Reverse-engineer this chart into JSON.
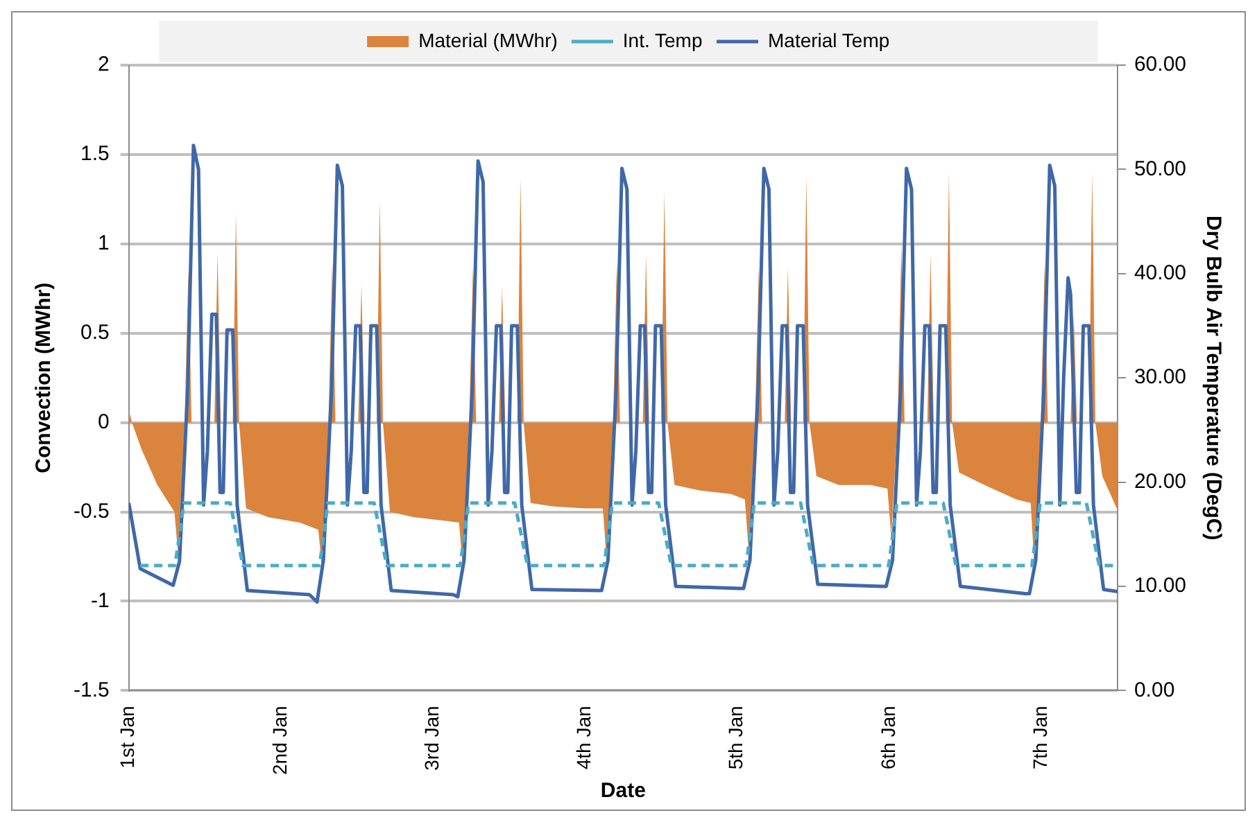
{
  "chart_data": {
    "type": "area",
    "xlabel": "Date",
    "ylabel": "Convection (MWhr)",
    "y2label": "Dry Bulb Air Temperature (DegC)",
    "legend": "top",
    "grid": "y",
    "xlim": [
      "--01-01T00:00",
      "--01-07T12:00"
    ],
    "xticks": [
      {
        "value": "--01-01",
        "label": "1st Jan"
      },
      {
        "value": "--01-02",
        "label": "2nd Jan"
      },
      {
        "value": "--01-03",
        "label": "3rd Jan"
      },
      {
        "value": "--01-04",
        "label": "4th Jan"
      },
      {
        "value": "--01-05",
        "label": "5th Jan"
      },
      {
        "value": "--01-06",
        "label": "6th Jan"
      },
      {
        "value": "--01-07",
        "label": "7th Jan"
      }
    ],
    "ylim": [
      -1.5,
      2
    ],
    "yticks": [
      -1.5,
      -1,
      -0.5,
      0,
      0.5,
      1,
      1.5,
      2
    ],
    "y2lim": [
      0,
      60
    ],
    "y2ticks": [
      {
        "value": 0,
        "label": "0.00"
      },
      {
        "value": 10,
        "label": "10.00"
      },
      {
        "value": 20,
        "label": "20.00"
      },
      {
        "value": 30,
        "label": "30.00"
      },
      {
        "value": 40,
        "label": "40.00"
      },
      {
        "value": 50,
        "label": "50.00"
      },
      {
        "value": 60,
        "label": "60.00"
      }
    ],
    "series": [
      {
        "name": "Material (MWhr)",
        "color": "#db843d",
        "x": [
          "--01-01T00:00",
          "--01-01T00:30",
          "--01-01T02:00",
          "--01-01T04:30",
          "--01-01T06:18",
          "--01-01T07:12",
          "--01-01T07:48",
          "--01-01T08:48",
          "--01-01T09:24",
          "--01-01T09:54",
          "--01-01T13:30",
          "--01-01T14:00",
          "--01-01T14:30",
          "--01-01T16:24",
          "--01-01T16:54",
          "--01-01T17:24",
          "--01-01T18:30",
          "--01-01T22:00",
          "--01-02T03:00",
          "--01-02T05:54",
          "--01-02T06:30",
          "--01-02T07:30",
          "--01-02T08:06",
          "--01-02T08:36",
          "--01-02T12:12",
          "--01-02T12:42",
          "--01-02T13:12",
          "--01-02T15:06",
          "--01-02T15:36",
          "--01-02T16:06",
          "--01-02T17:12",
          "--01-02T21:00",
          "--01-03T02:00",
          "--01-03T04:06",
          "--01-03T04:42",
          "--01-03T05:42",
          "--01-03T06:18",
          "--01-03T06:48",
          "--01-03T10:24",
          "--01-03T10:54",
          "--01-03T11:24",
          "--01-03T13:18",
          "--01-03T13:48",
          "--01-03T14:18",
          "--01-03T15:24",
          "--01-03T19:00",
          "--01-04T00:00",
          "--01-04T02:48",
          "--01-04T03:24",
          "--01-04T04:24",
          "--01-04T05:00",
          "--01-04T05:30",
          "--01-04T09:06",
          "--01-04T09:36",
          "--01-04T10:06",
          "--01-04T12:00",
          "--01-04T12:30",
          "--01-04T13:00",
          "--01-04T14:06",
          "--01-04T18:00",
          "--01-04T23:00",
          "--01-05T01:12",
          "--01-05T01:48",
          "--01-05T02:48",
          "--01-05T03:24",
          "--01-05T03:54",
          "--01-05T07:30",
          "--01-05T08:00",
          "--01-05T08:30",
          "--01-05T10:24",
          "--01-05T10:54",
          "--01-05T11:24",
          "--01-05T12:30",
          "--01-05T16:00",
          "--01-05T21:00",
          "--01-05T23:42",
          "--01-06T00:18",
          "--01-06T01:18",
          "--01-06T01:54",
          "--01-06T02:24",
          "--01-06T06:00",
          "--01-06T06:30",
          "--01-06T07:00",
          "--01-06T08:54",
          "--01-06T09:24",
          "--01-06T09:54",
          "--01-06T11:00",
          "--01-06T15:00",
          "--01-06T20:00",
          "--01-06T22:18",
          "--01-06T22:54",
          "--01-06T23:54",
          "--01-07T00:30",
          "--01-07T01:00",
          "--01-07T04:36",
          "--01-07T05:06",
          "--01-07T05:36",
          "--01-07T07:30",
          "--01-07T08:00",
          "--01-07T08:30",
          "--01-07T09:36",
          "--01-07T12:00"
        ],
        "values": [
          0.07,
          0,
          -0.15,
          -0.35,
          -0.45,
          -0.5,
          -0.75,
          0,
          0.85,
          0,
          0,
          0.95,
          0,
          0,
          1.17,
          0,
          -0.48,
          -0.53,
          -0.56,
          -0.6,
          -0.82,
          0,
          0.9,
          0,
          0,
          0.77,
          0,
          0,
          1.24,
          0,
          -0.5,
          -0.53,
          -0.55,
          -0.56,
          -0.82,
          0,
          0.87,
          0,
          0,
          0.76,
          0,
          0,
          1.37,
          0,
          -0.45,
          -0.47,
          -0.48,
          -0.48,
          -0.78,
          0,
          0.9,
          0,
          0,
          0.94,
          0,
          0,
          1.29,
          0,
          -0.35,
          -0.38,
          -0.4,
          -0.43,
          -0.72,
          0,
          0.87,
          0,
          0,
          0.87,
          0,
          0,
          1.38,
          0,
          -0.3,
          -0.35,
          -0.35,
          -0.37,
          -0.64,
          0,
          1,
          0,
          0,
          0.94,
          0,
          0,
          1.4,
          0,
          -0.28,
          -0.35,
          -0.43,
          -0.45,
          -0.82,
          0,
          0.9,
          0,
          0,
          0.6,
          0,
          0,
          1.4,
          0,
          -0.3,
          -0.49
        ]
      },
      {
        "name": "Int. Temp",
        "type": "line",
        "axis": "y2",
        "line_style": "dashed",
        "color": "#4bacc6",
        "x": [
          "--01-01T01:48",
          "--01-01T07:18",
          "--01-01T08:42",
          "--01-01T16:00",
          "--01-01T18:00",
          "--01-02T06:06",
          "--01-02T07:24",
          "--01-02T14:42",
          "--01-02T16:42",
          "--01-03T04:18",
          "--01-03T05:36",
          "--01-03T12:54",
          "--01-03T14:54",
          "--01-04T03:00",
          "--01-04T04:18",
          "--01-04T11:36",
          "--01-04T13:36",
          "--01-05T01:24",
          "--01-05T02:42",
          "--01-05T10:00",
          "--01-05T12:00",
          "--01-05T23:54",
          "--01-06T01:12",
          "--01-06T08:30",
          "--01-06T10:30",
          "--01-06T22:30",
          "--01-06T23:48",
          "--01-07T07:06",
          "--01-07T09:06",
          "--01-07T12:00"
        ],
        "values": [
          12,
          12,
          18,
          18,
          12,
          12,
          18,
          18,
          12,
          12,
          18,
          18,
          12,
          12,
          18,
          18,
          12,
          12,
          18,
          18,
          12,
          12,
          18,
          18,
          12,
          12,
          18,
          18,
          12,
          12
        ]
      },
      {
        "name": "Material Temp",
        "type": "line",
        "axis": "y2",
        "line_style": "solid",
        "color": "#4068a8",
        "x": [
          "--01-01T00:00",
          "--01-01T01:48",
          "--01-01T07:00",
          "--01-01T08:00",
          "--01-01T09:18",
          "--01-01T10:12",
          "--01-01T11:00",
          "--01-01T11:48",
          "--01-01T12:24",
          "--01-01T13:06",
          "--01-01T13:48",
          "--01-01T14:24",
          "--01-01T14:54",
          "--01-01T15:30",
          "--01-01T16:24",
          "--01-01T17:06",
          "--01-01T18:42",
          "--01-02T04:30",
          "--01-02T05:42",
          "--01-02T06:42",
          "--01-02T08:00",
          "--01-02T08:54",
          "--01-02T09:42",
          "--01-02T10:30",
          "--01-02T11:06",
          "--01-02T11:48",
          "--01-02T12:30",
          "--01-02T13:06",
          "--01-02T13:36",
          "--01-02T14:12",
          "--01-02T15:06",
          "--01-02T15:48",
          "--01-02T17:24",
          "--01-03T03:12",
          "--01-03T03:54",
          "--01-03T04:54",
          "--01-03T06:12",
          "--01-03T07:06",
          "--01-03T07:54",
          "--01-03T08:42",
          "--01-03T09:18",
          "--01-03T10:00",
          "--01-03T10:42",
          "--01-03T11:18",
          "--01-03T11:48",
          "--01-03T12:24",
          "--01-03T13:18",
          "--01-03T14:00",
          "--01-03T15:36",
          "--01-04T01:54",
          "--01-04T02:36",
          "--01-04T03:36",
          "--01-04T04:54",
          "--01-04T05:48",
          "--01-04T06:36",
          "--01-04T07:24",
          "--01-04T08:00",
          "--01-04T08:42",
          "--01-04T09:24",
          "--01-04T10:00",
          "--01-04T10:30",
          "--01-04T11:06",
          "--01-04T12:00",
          "--01-04T12:42",
          "--01-04T14:18",
          "--01-05T00:18",
          "--01-05T01:00",
          "--01-05T02:00",
          "--01-05T03:18",
          "--01-05T04:12",
          "--01-05T05:00",
          "--01-05T05:48",
          "--01-05T06:24",
          "--01-05T07:06",
          "--01-05T07:48",
          "--01-05T08:24",
          "--01-05T08:54",
          "--01-05T09:30",
          "--01-05T10:24",
          "--01-05T11:06",
          "--01-05T12:42",
          "--01-05T22:48",
          "--01-05T23:30",
          "--01-06T00:30",
          "--01-06T01:48",
          "--01-06T02:42",
          "--01-06T03:30",
          "--01-06T04:18",
          "--01-06T04:54",
          "--01-06T05:36",
          "--01-06T06:18",
          "--01-06T06:54",
          "--01-06T07:24",
          "--01-06T08:00",
          "--01-06T08:54",
          "--01-06T09:36",
          "--01-06T11:12",
          "--01-06T21:24",
          "--01-06T22:06",
          "--01-06T23:06",
          "--01-07T00:24",
          "--01-07T01:18",
          "--01-07T02:06",
          "--01-07T02:54",
          "--01-07T03:30",
          "--01-07T04:12",
          "--01-07T04:36",
          "--01-07T05:30",
          "--01-07T06:00",
          "--01-07T06:36",
          "--01-07T07:30",
          "--01-07T08:12",
          "--01-07T09:48",
          "--01-07T12:00"
        ],
        "values": [
          18,
          11.7,
          10.1,
          12.4,
          29,
          52.3,
          50,
          17.8,
          23,
          36.1,
          36.1,
          19,
          19,
          34.6,
          34.6,
          17.8,
          9.6,
          9.2,
          8.5,
          12.5,
          29,
          50.4,
          48.4,
          17.8,
          23,
          35,
          35,
          19,
          19,
          35,
          35,
          17.8,
          9.6,
          9.2,
          9,
          12.5,
          29,
          50.8,
          48.8,
          17.8,
          23,
          35,
          35,
          19,
          19,
          35,
          35,
          17.8,
          9.7,
          9.6,
          9.6,
          12.5,
          29,
          50.1,
          48.1,
          17.8,
          23,
          35,
          35,
          19,
          19,
          35,
          35,
          17.8,
          10,
          9.8,
          9.8,
          12.5,
          29,
          50.1,
          48.1,
          17.8,
          23,
          35,
          35,
          19,
          19,
          35,
          35,
          17.8,
          10.2,
          10,
          10,
          12.5,
          29,
          50.1,
          48.1,
          17.8,
          23,
          35,
          35,
          19,
          19,
          35,
          35,
          17.8,
          10,
          9.3,
          9.3,
          12.5,
          29,
          50.4,
          48.4,
          17.8,
          30,
          39.6,
          38,
          19,
          19,
          35,
          35,
          17.8,
          9.7,
          9.5
        ]
      }
    ]
  }
}
